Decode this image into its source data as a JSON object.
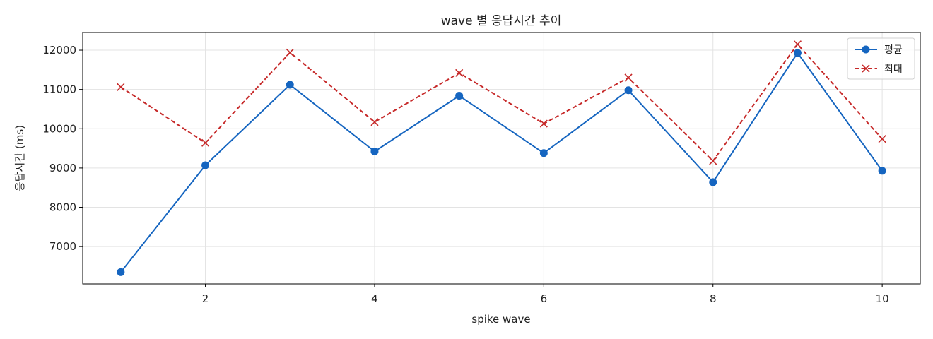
{
  "chart_data": {
    "type": "line",
    "title": "wave 별 응답시간 추이",
    "xlabel": "spike wave",
    "ylabel": "응답시간 (ms)",
    "x": [
      1,
      2,
      3,
      4,
      5,
      6,
      7,
      8,
      9,
      10
    ],
    "x_ticks": [
      2,
      4,
      6,
      8,
      10
    ],
    "y_ticks": [
      7000,
      8000,
      9000,
      10000,
      11000,
      12000
    ],
    "xlim": [
      0.55,
      10.45
    ],
    "ylim": [
      6050,
      12450
    ],
    "grid": true,
    "legend_position": "top-right",
    "series": [
      {
        "name": "평균",
        "color": "#1565c0",
        "line_style": "solid",
        "marker": "circle",
        "values": [
          6350,
          9070,
          11120,
          9420,
          10840,
          9380,
          10980,
          8640,
          11930,
          8930
        ]
      },
      {
        "name": "최대",
        "color": "#c62828",
        "line_style": "dashed",
        "marker": "x",
        "values": [
          11060,
          9640,
          11940,
          10170,
          11420,
          10130,
          11300,
          9180,
          12150,
          9740
        ]
      }
    ]
  }
}
